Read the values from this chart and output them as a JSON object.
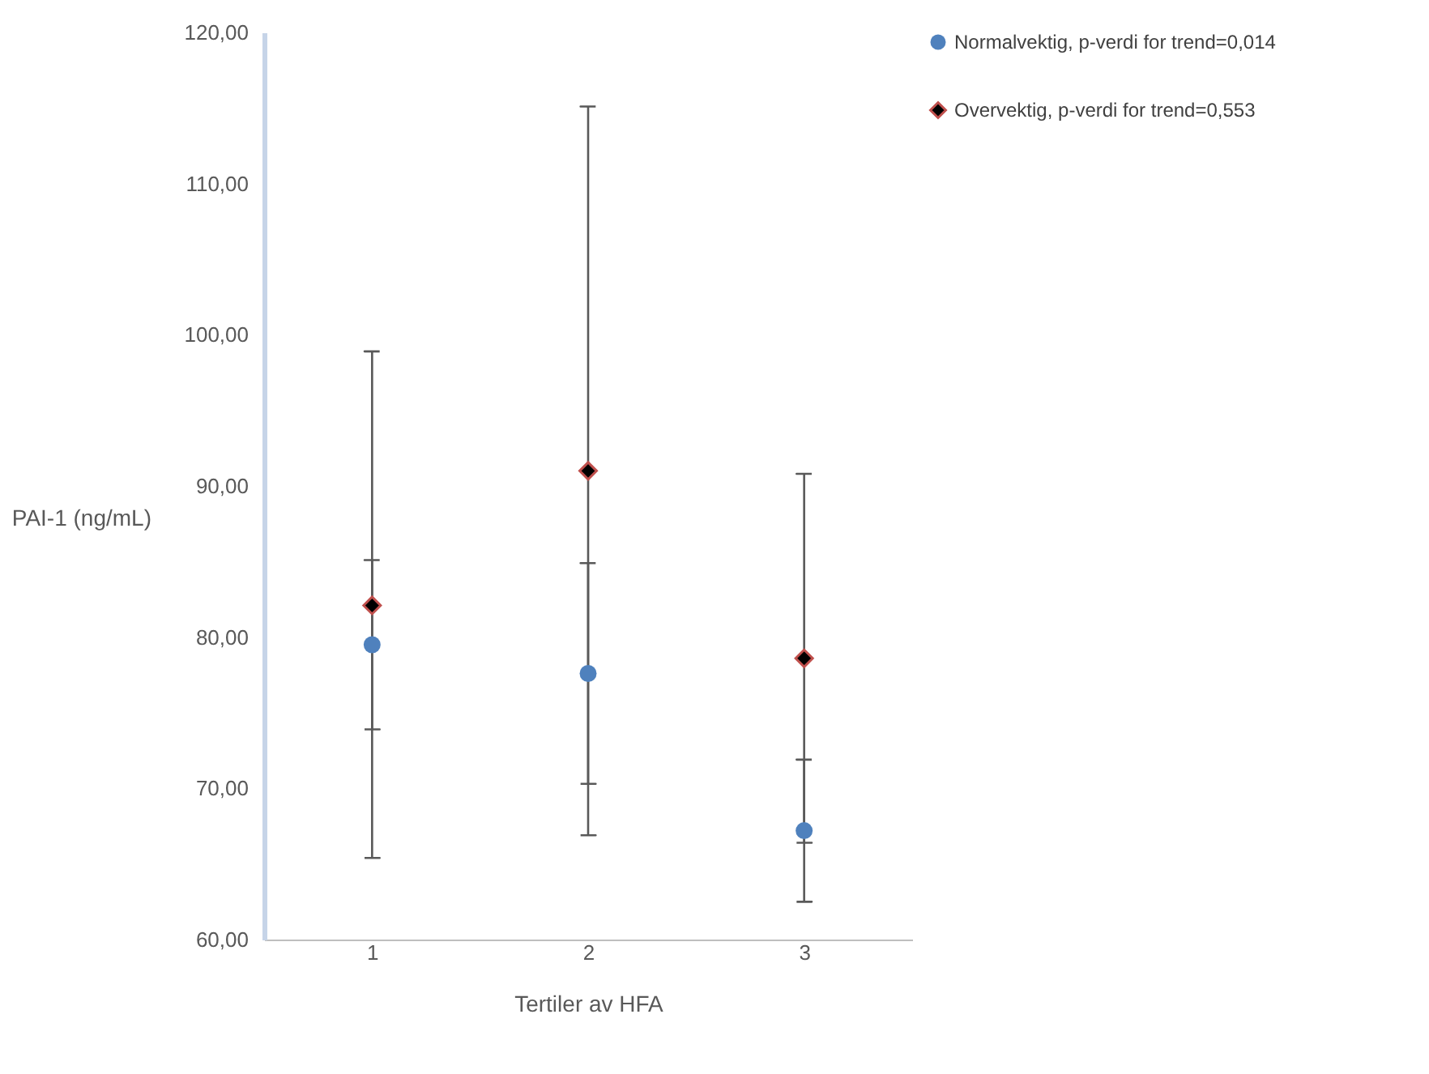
{
  "chart_data": {
    "type": "scatter",
    "xlabel": "Tertiler av HFA",
    "ylabel": "PAI-1 (ng/mL)",
    "categories": [
      "1",
      "2",
      "3"
    ],
    "series": [
      {
        "name": "Normalvektig, p-verdi for trend=0,014",
        "color": "#4f81bd",
        "marker": "circle",
        "values": [
          79.5,
          77.6,
          67.2
        ],
        "errors": [
          [
            73.9,
            85.1
          ],
          [
            70.3,
            84.9
          ],
          [
            62.5,
            71.9
          ]
        ]
      },
      {
        "name": "Overvektig, p-verdi for trend=0,553",
        "color": "#000000",
        "marker": "diamond",
        "values": [
          82.1,
          91.0,
          78.6
        ],
        "errors": [
          [
            65.4,
            98.9
          ],
          [
            66.9,
            115.1
          ],
          [
            66.4,
            90.8
          ]
        ]
      }
    ],
    "ylim": [
      60,
      120
    ],
    "yticks": [
      {
        "value": 60,
        "label": "60,00"
      },
      {
        "value": 70,
        "label": "70,00"
      },
      {
        "value": 80,
        "label": "80,00"
      },
      {
        "value": 90,
        "label": "90,00"
      },
      {
        "value": 100,
        "label": "100,00"
      },
      {
        "value": 110,
        "label": "110,00"
      },
      {
        "value": 120,
        "label": "120,00"
      }
    ],
    "grid": false,
    "legend": "top right"
  }
}
